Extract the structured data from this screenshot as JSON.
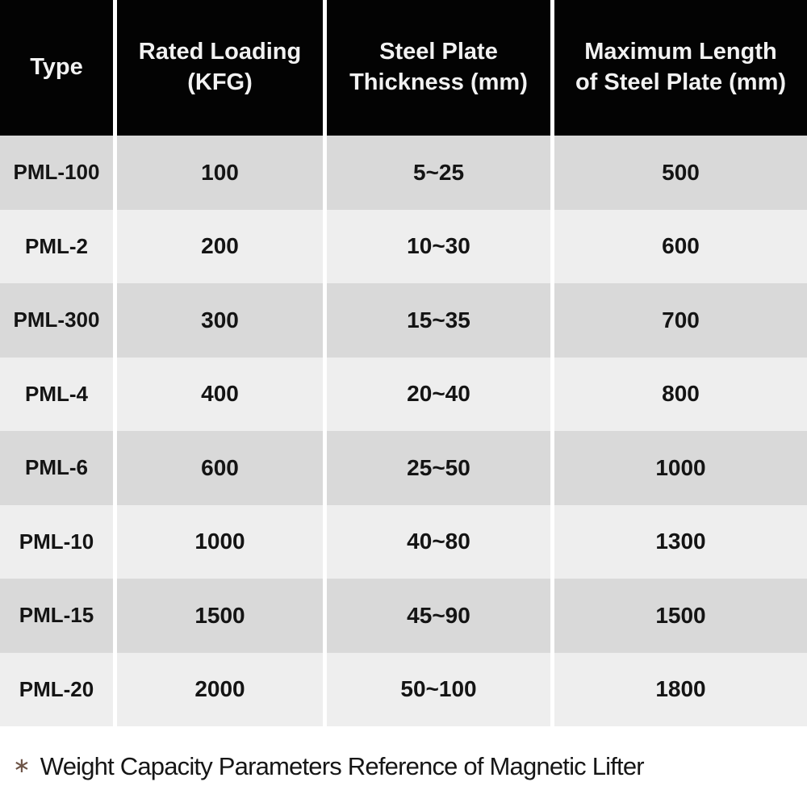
{
  "table": {
    "columns": [
      {
        "id": "type",
        "label": [
          "Type"
        ]
      },
      {
        "id": "rated_loading",
        "label": [
          "Rated Loading",
          "(KFG)"
        ]
      },
      {
        "id": "thickness",
        "label": [
          "Steel Plate",
          "Thickness (mm)"
        ]
      },
      {
        "id": "max_length",
        "label": [
          "Maximum Length",
          "of Steel Plate (mm)"
        ]
      }
    ],
    "rows": [
      {
        "type": "PML-100",
        "rated_loading": "100",
        "thickness": "5~25",
        "max_length": "500"
      },
      {
        "type": "PML-2",
        "rated_loading": "200",
        "thickness": "10~30",
        "max_length": "600"
      },
      {
        "type": "PML-300",
        "rated_loading": "300",
        "thickness": "15~35",
        "max_length": "700"
      },
      {
        "type": "PML-4",
        "rated_loading": "400",
        "thickness": "20~40",
        "max_length": "800"
      },
      {
        "type": "PML-6",
        "rated_loading": "600",
        "thickness": "25~50",
        "max_length": "1000"
      },
      {
        "type": "PML-10",
        "rated_loading": "1000",
        "thickness": "40~80",
        "max_length": "1300"
      },
      {
        "type": "PML-15",
        "rated_loading": "1500",
        "thickness": "45~90",
        "max_length": "1500"
      },
      {
        "type": "PML-20",
        "rated_loading": "2000",
        "thickness": "50~100",
        "max_length": "1800"
      }
    ]
  },
  "footnote": {
    "marker": "∗",
    "text": "Weight Capacity Parameters Reference of Magnetic Lifter"
  },
  "colors": {
    "header_bg": "#030303",
    "header_text": "#f2f2f2",
    "row_dark": "#d9d9d9",
    "row_light": "#eeeeee",
    "cell_text": "#141414",
    "separator": "#ffffff",
    "footnote_marker": "#6e5548"
  },
  "chart_data": {
    "type": "table",
    "title": "Weight Capacity Parameters Reference of Magnetic Lifter",
    "columns": [
      "Type",
      "Rated Loading (KFG)",
      "Steel Plate Thickness (mm)",
      "Maximum Length of Steel Plate (mm)"
    ],
    "rows": [
      [
        "PML-100",
        "100",
        "5~25",
        "500"
      ],
      [
        "PML-2",
        "200",
        "10~30",
        "600"
      ],
      [
        "PML-300",
        "300",
        "15~35",
        "700"
      ],
      [
        "PML-4",
        "400",
        "20~40",
        "800"
      ],
      [
        "PML-6",
        "600",
        "25~50",
        "1000"
      ],
      [
        "PML-10",
        "1000",
        "40~80",
        "1300"
      ],
      [
        "PML-15",
        "1500",
        "45~90",
        "1500"
      ],
      [
        "PML-20",
        "2000",
        "50~100",
        "1800"
      ]
    ],
    "layout_hints": {
      "header_style": "black background, white bold text",
      "row_striping": [
        "#d9d9d9",
        "#eeeeee"
      ],
      "column_separators": "white vertical lines",
      "alignment": "center"
    }
  }
}
